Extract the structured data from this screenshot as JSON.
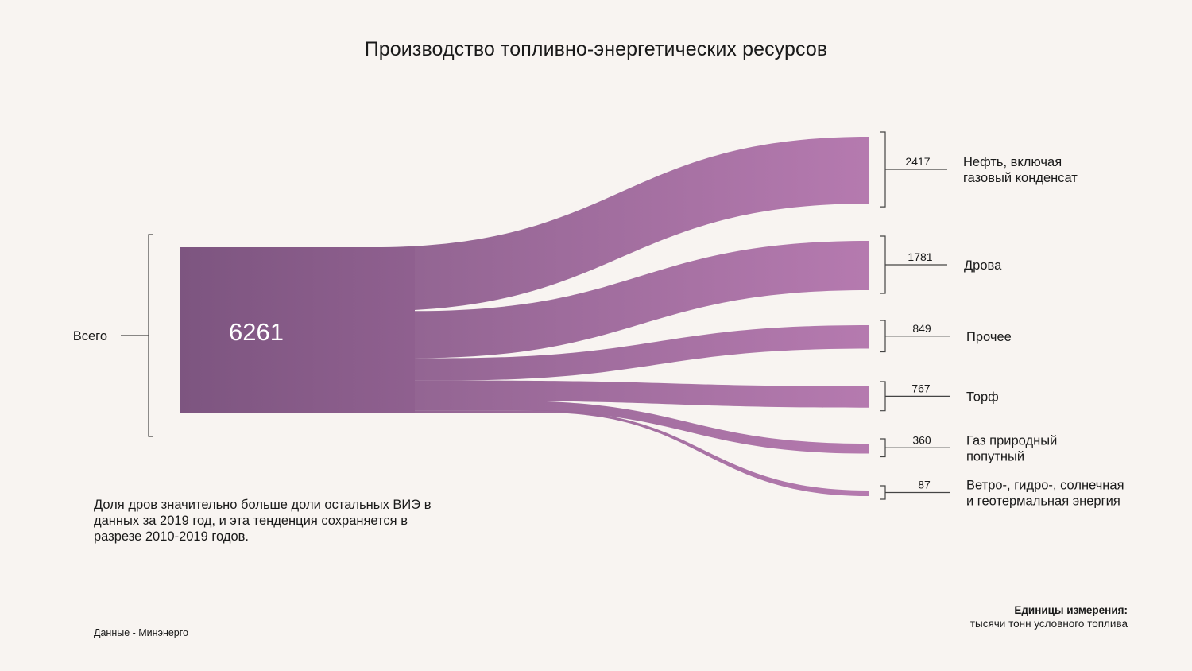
{
  "title": "Производство топливно-энергетических ресурсов",
  "note": "Доля дров значительно больше доли остальных ВИЭ в данных за 2019 год, и эта тенденция сохраняется в разрезе 2010-2019 годов.",
  "source": "Данные - Минэнерго",
  "units": {
    "heading": "Единицы измерения:",
    "text": "тысячи тонн условного топлива"
  },
  "colors": {
    "flow_start": "#7d5580",
    "flow_end": "#b376ad",
    "background": "#f8f4f1"
  },
  "chart_data": {
    "type": "sankey",
    "title": "Производство топливно-энергетических ресурсов",
    "source": {
      "label": "Всего",
      "value": "6261"
    },
    "targets": [
      {
        "label": [
          "Нефть, включая",
          "газовый конденсат"
        ],
        "value": 2417
      },
      {
        "label": [
          "Дрова"
        ],
        "value": 1781
      },
      {
        "label": [
          "Прочее"
        ],
        "value": 849
      },
      {
        "label": [
          "Торф"
        ],
        "value": 767
      },
      {
        "label": [
          "Газ природный",
          "попутный"
        ],
        "value": 360
      },
      {
        "label": [
          "Ветро-, гидро-, солнечная",
          "и геотермальная энергия"
        ],
        "value": 87
      }
    ]
  }
}
